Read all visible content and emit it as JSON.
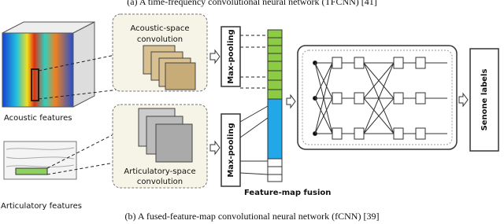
{
  "top_caption": "(a) A time-frequency convolutional neural network (TFCNN) [41]",
  "acoustic_conv": [
    "Acoustic-space",
    "convolution"
  ],
  "articulatory_conv": [
    "Articulatory-space",
    "convolution"
  ],
  "max_pooling_top": "Max-pooling",
  "max_pooling_bottom": "Max-pooling",
  "acoustic_features": "Acoustic features",
  "articulatory_features": "Articulatory features",
  "fusion": "Feature-map fusion",
  "senone": "Senone labels",
  "caption": "(b) A fused-feature-map convolutional neural network (fCNN) [39]"
}
